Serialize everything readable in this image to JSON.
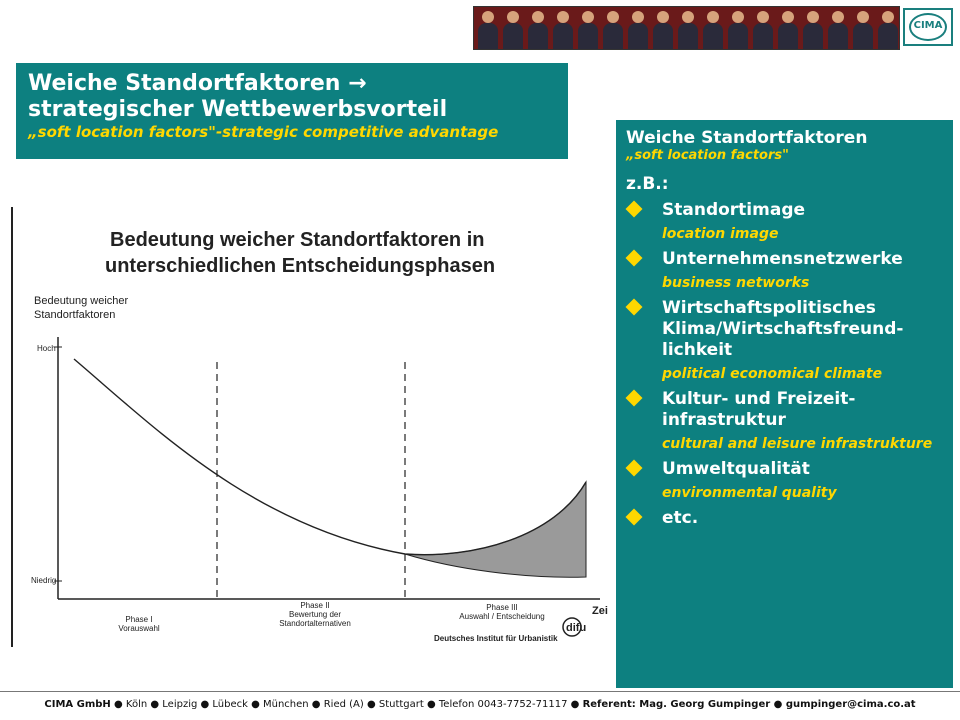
{
  "header": {
    "logo_text": "CIMA"
  },
  "title": {
    "line1": "Weiche Standortfaktoren →",
    "line2": "strategischer Wettbewerbsvorteil",
    "line3": "„soft location factors\"-strategic competitive advantage"
  },
  "diagram": {
    "heading1": "Bedeutung weicher Standortfaktoren in",
    "heading2": "unterschiedlichen Entscheidungsphasen",
    "ylabel1": "Bedeutung weicher",
    "ylabel2": "Standortfaktoren",
    "y_high": "Hoch",
    "y_low": "Niedrig",
    "x_label": "Zeit",
    "phases": [
      {
        "line1": "Phase I",
        "line2": "Vorauswahl",
        "line3": ""
      },
      {
        "line1": "Phase II",
        "line2": "Bewertung der",
        "line3": "Standortalternativen"
      },
      {
        "line1": "Phase III",
        "line2": "Auswahl / Entscheidung",
        "line3": ""
      }
    ],
    "source": "Deutsches Institut für Urbanistik",
    "source_logo": "difu"
  },
  "panel": {
    "heading": "Weiche Standortfaktoren",
    "sub": "„soft location factors\"",
    "zb": "z.B.:",
    "items": [
      {
        "label": "Standortimage",
        "en": "location image"
      },
      {
        "label": "Unternehmensnetzwerke",
        "en": "business networks"
      },
      {
        "label": "Wirtschaftspolitisches Klima/Wirtschaftsfreund-lichkeit",
        "en": "political economical climate"
      },
      {
        "label": "Kultur- und Freizeit-infrastruktur",
        "en": "cultural and leisure infrastrukture"
      },
      {
        "label": "Umweltqualität",
        "en": "environmental quality"
      },
      {
        "label": "etc.",
        "en": ""
      }
    ],
    "bullet_icon": "diamond-bullet-icon"
  },
  "footer": {
    "company": "CIMA GmbH",
    "cities": "● Köln ● Leipzig ● Lübeck ● München ● Ried (A) ● Stuttgart ● Telefon 0043-7752-71117 ●",
    "referent": "Referent: Mag. Georg Gumpinger ● gumpinger@cima.co.at"
  },
  "colors": {
    "teal": "#0d8080",
    "yellow": "#ffd700"
  }
}
